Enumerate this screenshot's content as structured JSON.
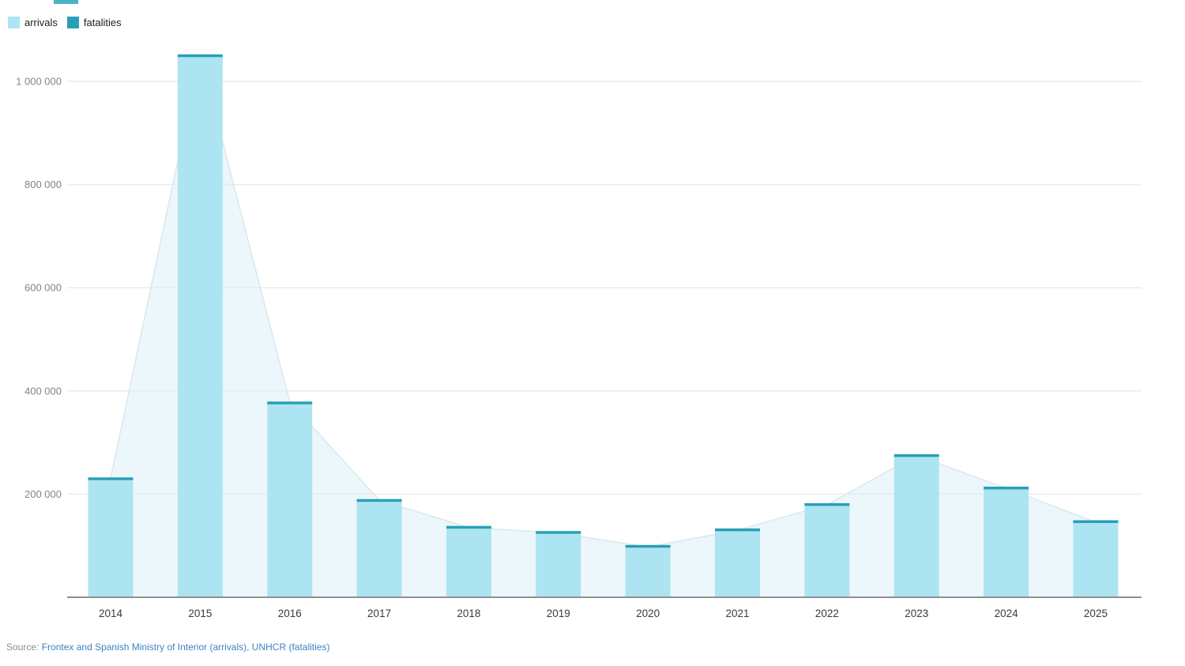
{
  "page": {
    "background": "#ffffff",
    "top_fragment_color": "#2aa3b8"
  },
  "legend": {
    "items": [
      {
        "label": "arrivals",
        "color": "#ade4f2"
      },
      {
        "label": "fatalities",
        "color": "#27a0b5"
      }
    ]
  },
  "source": {
    "prefix": "Source: ",
    "link_text": "Frontex and Spanish Ministry of Interior (arrivals), UNHCR (fatalities)",
    "prefix_color": "#8d8d8d",
    "link_color": "#3d82c6"
  },
  "colors": {
    "arrivals_bar": "#ade4f2",
    "fatalities_cap": "#27a0b5",
    "area_fill": "rgba(213,238,248,0.45)",
    "area_line": "#dbe7ee",
    "gridline": "#ebebeb",
    "axis_line": "#8f8f8f",
    "y_tick_text": "#848484",
    "x_tick_text": "#3a3a3a"
  },
  "chart_data": {
    "type": "bar",
    "subtype": "stacked-bars-with-area-overlay",
    "title": "",
    "xlabel": "",
    "ylabel": "",
    "categories": [
      "2014",
      "2015",
      "2016",
      "2017",
      "2018",
      "2019",
      "2020",
      "2021",
      "2022",
      "2023",
      "2024",
      "2025"
    ],
    "series": [
      {
        "name": "arrivals",
        "values": [
          227000,
          1047000,
          374000,
          185000,
          133000,
          123000,
          96000,
          128000,
          177000,
          272000,
          209000,
          144000
        ]
      },
      {
        "name": "fatalities",
        "values": [
          3500,
          3800,
          5100,
          3100,
          2300,
          1300,
          1400,
          2000,
          2400,
          3200,
          2300,
          1700
        ]
      }
    ],
    "stacked": true,
    "area_overlay_series": "total (arrivals + fatalities)",
    "ylim": [
      0,
      1065000
    ],
    "yticks": {
      "values": [
        200000,
        400000,
        600000,
        800000,
        1000000
      ],
      "labels": [
        "200 000",
        "400 000",
        "600 000",
        "800 000",
        "1 000 000"
      ]
    },
    "grid": "horizontal",
    "legend_position": "top-left"
  }
}
